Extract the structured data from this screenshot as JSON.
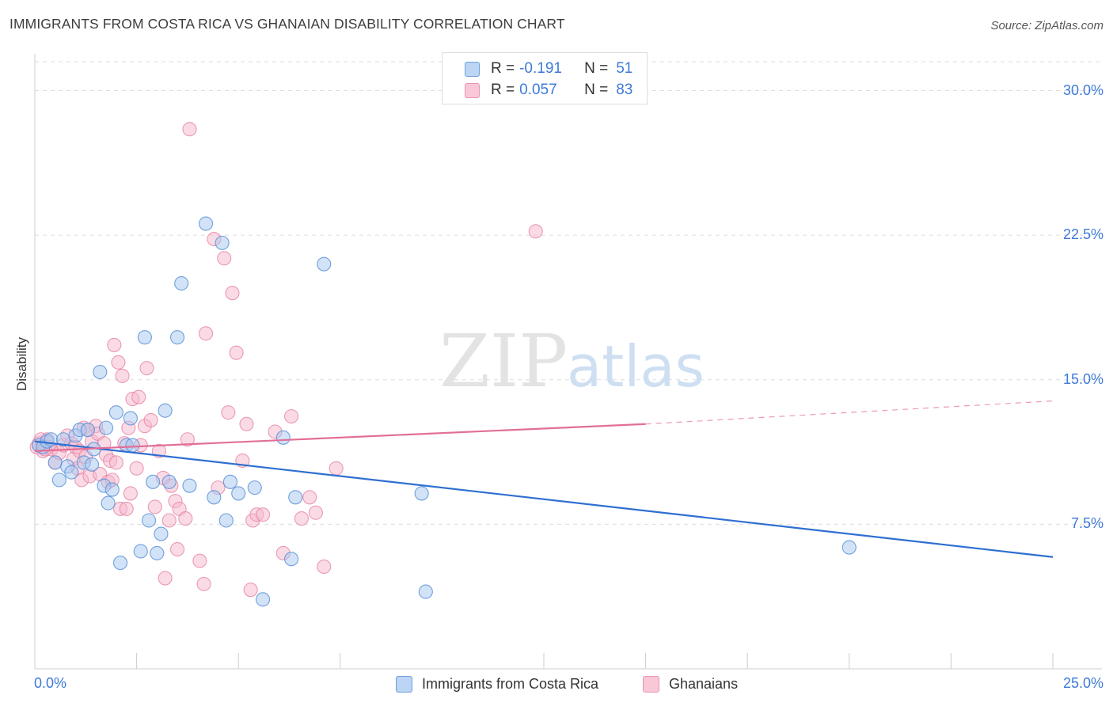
{
  "header": {
    "title": "IMMIGRANTS FROM COSTA RICA VS GHANAIAN DISABILITY CORRELATION CHART",
    "source": "Source: ZipAtlas.com"
  },
  "legend": {
    "rows": [
      {
        "r_label": "R =",
        "r_value": "-0.191",
        "n_label": "N =",
        "n_value": "51"
      },
      {
        "r_label": "R =",
        "r_value": "0.057",
        "n_label": "N =",
        "n_value": "83"
      }
    ]
  },
  "bottom_legend": {
    "series1": "Immigrants from Costa Rica",
    "series2": "Ghanaians"
  },
  "watermark": {
    "zip": "ZIP",
    "atlas": "atlas"
  },
  "colors": {
    "blue_fill": "#a8c8f0",
    "blue_stroke": "#5b92d8",
    "blue_line": "#2f6fd1",
    "pink_fill": "#f6b7cb",
    "pink_stroke": "#e889a9",
    "pink_line": "#e26e97",
    "accent_text": "#3d7ad8"
  },
  "chart_data": {
    "type": "scatter",
    "title": "IMMIGRANTS FROM COSTA RICA VS GHANAIAN DISABILITY CORRELATION CHART",
    "xlabel": "",
    "ylabel": "Disability",
    "xlim": [
      0,
      25
    ],
    "ylim": [
      0,
      31.5
    ],
    "x_tick_labels": [
      "0.0%",
      "25.0%"
    ],
    "y_ticks": [
      7.5,
      15.0,
      22.5,
      30.0
    ],
    "y_tick_labels": [
      "7.5%",
      "15.0%",
      "22.5%",
      "30.0%"
    ],
    "grid": "horizontal dashed",
    "legend_position": "top-center",
    "series": [
      {
        "name": "Immigrants from Costa Rica",
        "r": -0.191,
        "n": 51,
        "trend": {
          "x": [
            0,
            25
          ],
          "y": [
            11.8,
            5.8
          ]
        },
        "points": [
          [
            0.1,
            11.6
          ],
          [
            0.2,
            11.5
          ],
          [
            0.3,
            11.8
          ],
          [
            0.4,
            11.9
          ],
          [
            0.5,
            10.7
          ],
          [
            0.6,
            9.8
          ],
          [
            0.7,
            11.9
          ],
          [
            0.8,
            10.5
          ],
          [
            0.9,
            10.2
          ],
          [
            1.0,
            12.1
          ],
          [
            1.1,
            12.4
          ],
          [
            1.2,
            10.7
          ],
          [
            1.3,
            12.4
          ],
          [
            1.4,
            10.6
          ],
          [
            1.45,
            11.4
          ],
          [
            1.6,
            15.4
          ],
          [
            1.7,
            9.5
          ],
          [
            1.75,
            12.5
          ],
          [
            1.8,
            8.6
          ],
          [
            1.9,
            9.3
          ],
          [
            2.0,
            13.3
          ],
          [
            2.1,
            5.5
          ],
          [
            2.25,
            11.6
          ],
          [
            2.35,
            13.0
          ],
          [
            2.4,
            11.6
          ],
          [
            2.6,
            6.1
          ],
          [
            2.7,
            17.2
          ],
          [
            2.8,
            7.7
          ],
          [
            2.9,
            9.7
          ],
          [
            3.0,
            6.0
          ],
          [
            3.1,
            7.0
          ],
          [
            3.2,
            13.4
          ],
          [
            3.3,
            9.7
          ],
          [
            3.5,
            17.2
          ],
          [
            3.6,
            20.0
          ],
          [
            3.8,
            9.5
          ],
          [
            4.2,
            23.1
          ],
          [
            4.4,
            8.9
          ],
          [
            4.6,
            22.1
          ],
          [
            4.7,
            7.7
          ],
          [
            4.8,
            9.7
          ],
          [
            5.0,
            9.1
          ],
          [
            5.4,
            9.4
          ],
          [
            5.6,
            3.6
          ],
          [
            6.1,
            12.0
          ],
          [
            6.3,
            5.7
          ],
          [
            6.4,
            8.9
          ],
          [
            7.1,
            21.0
          ],
          [
            9.5,
            9.1
          ],
          [
            9.6,
            4.0
          ],
          [
            20.0,
            6.3
          ]
        ]
      },
      {
        "name": "Ghanaians",
        "r": 0.057,
        "n": 83,
        "trend": {
          "x": [
            0,
            15
          ],
          "y": [
            11.3,
            12.7
          ]
        },
        "trend_dashed": {
          "x": [
            15,
            25
          ],
          "y": [
            12.7,
            13.9
          ]
        },
        "points": [
          [
            0.1,
            11.7
          ],
          [
            0.2,
            11.3
          ],
          [
            0.3,
            11.9
          ],
          [
            0.35,
            11.5
          ],
          [
            0.4,
            11.4
          ],
          [
            0.5,
            10.7
          ],
          [
            0.6,
            11.2
          ],
          [
            0.7,
            11.6
          ],
          [
            0.8,
            12.1
          ],
          [
            0.9,
            11.7
          ],
          [
            0.95,
            10.9
          ],
          [
            1.0,
            11.5
          ],
          [
            1.05,
            10.4
          ],
          [
            1.1,
            11.3
          ],
          [
            1.15,
            9.8
          ],
          [
            1.2,
            12.5
          ],
          [
            1.25,
            11.0
          ],
          [
            1.3,
            12.4
          ],
          [
            1.35,
            10.0
          ],
          [
            1.4,
            11.8
          ],
          [
            1.5,
            12.6
          ],
          [
            1.55,
            12.2
          ],
          [
            1.6,
            10.1
          ],
          [
            1.7,
            11.7
          ],
          [
            1.75,
            11.1
          ],
          [
            1.8,
            9.7
          ],
          [
            1.85,
            10.8
          ],
          [
            1.9,
            9.8
          ],
          [
            1.95,
            16.8
          ],
          [
            2.0,
            10.7
          ],
          [
            2.05,
            15.9
          ],
          [
            2.1,
            8.3
          ],
          [
            2.15,
            15.2
          ],
          [
            2.2,
            11.7
          ],
          [
            2.3,
            12.5
          ],
          [
            2.35,
            9.1
          ],
          [
            2.4,
            14.0
          ],
          [
            2.5,
            10.4
          ],
          [
            2.55,
            14.1
          ],
          [
            2.6,
            11.6
          ],
          [
            2.7,
            12.6
          ],
          [
            2.75,
            15.6
          ],
          [
            2.85,
            12.9
          ],
          [
            2.95,
            8.4
          ],
          [
            3.05,
            11.3
          ],
          [
            3.15,
            9.9
          ],
          [
            3.2,
            4.7
          ],
          [
            3.3,
            7.7
          ],
          [
            3.35,
            9.5
          ],
          [
            3.45,
            8.7
          ],
          [
            3.5,
            6.2
          ],
          [
            3.55,
            8.3
          ],
          [
            3.7,
            7.8
          ],
          [
            3.75,
            11.9
          ],
          [
            3.8,
            28.0
          ],
          [
            4.05,
            5.6
          ],
          [
            4.15,
            4.4
          ],
          [
            4.2,
            17.4
          ],
          [
            4.4,
            22.3
          ],
          [
            4.5,
            9.4
          ],
          [
            4.65,
            21.3
          ],
          [
            4.75,
            13.3
          ],
          [
            4.85,
            19.5
          ],
          [
            4.95,
            16.4
          ],
          [
            5.1,
            10.8
          ],
          [
            5.2,
            12.7
          ],
          [
            5.3,
            4.1
          ],
          [
            5.35,
            7.7
          ],
          [
            5.45,
            8.0
          ],
          [
            5.6,
            8.0
          ],
          [
            5.9,
            12.3
          ],
          [
            6.1,
            6.0
          ],
          [
            6.3,
            13.1
          ],
          [
            6.55,
            7.8
          ],
          [
            6.75,
            8.9
          ],
          [
            6.9,
            8.1
          ],
          [
            7.1,
            5.3
          ],
          [
            7.4,
            10.4
          ],
          [
            0.05,
            11.5
          ],
          [
            0.15,
            11.9
          ],
          [
            0.25,
            11.4
          ],
          [
            12.3,
            22.7
          ],
          [
            2.25,
            8.3
          ]
        ]
      }
    ]
  }
}
